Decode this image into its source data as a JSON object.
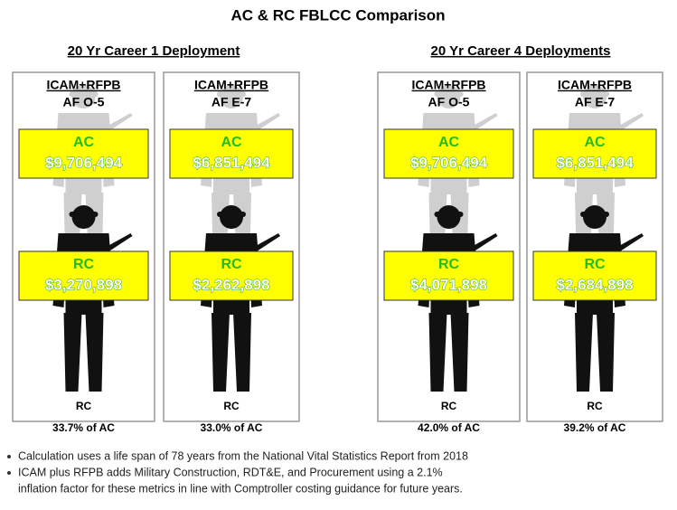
{
  "title": "AC & RC FBLCC Comparison",
  "groups": [
    {
      "heading": "20 Yr Career 1 Deployment",
      "panels": [
        {
          "header": "ICAM+RFPB",
          "grade": "AF O-5",
          "ac_label": "AC",
          "ac_value": "$9,706,494",
          "rc_label": "RC",
          "rc_value": "$3,270,898",
          "rc_tag": "RC",
          "percent": "33.7% of AC"
        },
        {
          "header": "ICAM+RFPB",
          "grade": "AF E-7",
          "ac_label": "AC",
          "ac_value": "$6,851,494",
          "rc_label": "RC",
          "rc_value": "$2,262,898",
          "rc_tag": "RC",
          "percent": "33.0% of AC"
        }
      ]
    },
    {
      "heading": "20 Yr Career 4 Deployments",
      "panels": [
        {
          "header": "ICAM+RFPB",
          "grade": "AF O-5",
          "ac_label": "AC",
          "ac_value": "$9,706,494",
          "rc_label": "RC",
          "rc_value": "$4,071,898",
          "rc_tag": "RC",
          "percent": "42.0% of AC"
        },
        {
          "header": "ICAM+RFPB",
          "grade": "AF E-7",
          "ac_label": "AC",
          "ac_value": "$6,851,494",
          "rc_label": "RC",
          "rc_value": "$2,684,898",
          "rc_tag": "RC",
          "percent": "39.2% of AC"
        }
      ]
    }
  ],
  "bullets": [
    {
      "lines": [
        "Calculation uses a life span of 78 years from the National Vital Statistics Report from 2018"
      ]
    },
    {
      "lines": [
        "ICAM plus RFPB adds Military Construction, RDT&E, and Procurement using a 2.1%",
        "inflation factor for these metrics in line with Comptroller costing guidance for future years."
      ]
    }
  ]
}
